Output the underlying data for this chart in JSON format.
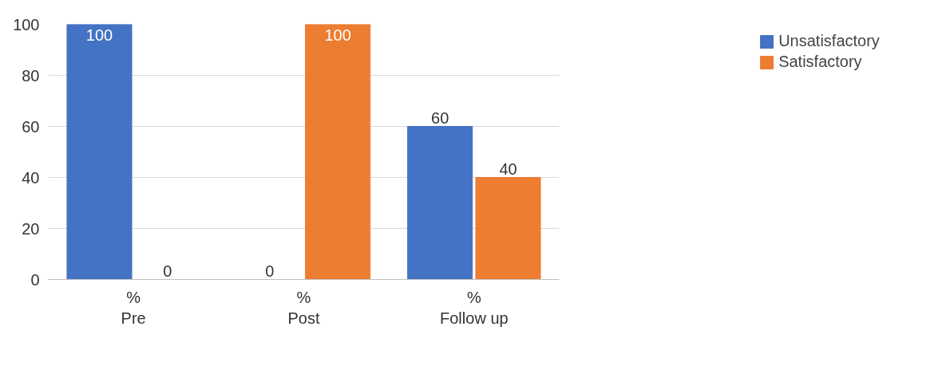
{
  "chart_data": {
    "type": "bar",
    "categories": [
      "%\nPre",
      "%\nPost",
      "%\nFollow up"
    ],
    "series": [
      {
        "name": "Unsatisfactory",
        "color": "#4472c4",
        "values": [
          100,
          0,
          60
        ]
      },
      {
        "name": "Satisfactory",
        "color": "#ed7d31",
        "values": [
          0,
          100,
          40
        ]
      }
    ],
    "ylim": [
      0,
      100
    ],
    "yticks": [
      0,
      20,
      40,
      60,
      80,
      100
    ],
    "grid": "y",
    "legend": "right",
    "data_labels": true
  }
}
